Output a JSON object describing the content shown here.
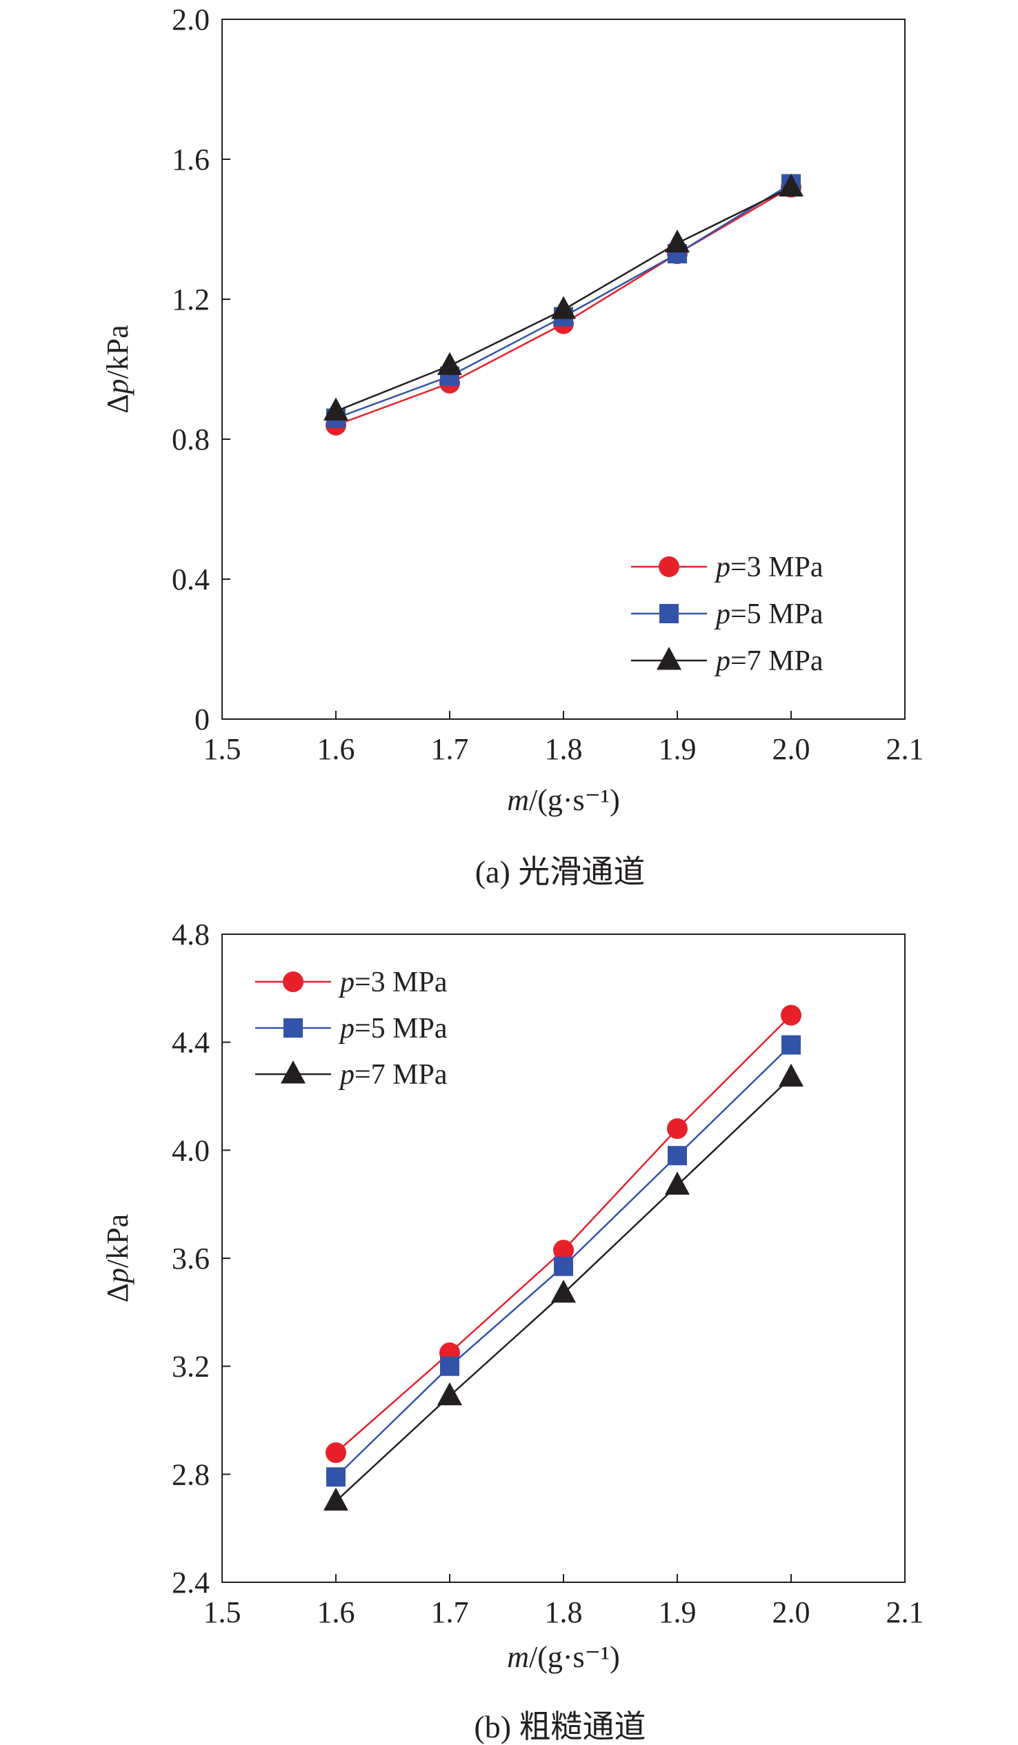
{
  "chart_data": [
    {
      "type": "line",
      "caption": "(a) 光滑通道",
      "xlabel": "m/(g·s⁻¹)",
      "ylabel": "Δp/kPa",
      "xlim": [
        1.5,
        2.1
      ],
      "ylim": [
        0,
        2.0
      ],
      "xticks": [
        "1.5",
        "1.6",
        "1.7",
        "1.8",
        "1.9",
        "2.0",
        "2.1"
      ],
      "yticks": [
        "0",
        "0.4",
        "0.8",
        "1.2",
        "1.6",
        "2.0"
      ],
      "legend_position": "bottom-right",
      "x": [
        1.6,
        1.7,
        1.8,
        1.9,
        2.0
      ],
      "series": [
        {
          "name": "p=3 MPa",
          "color": "#e8202a",
          "marker": "circle",
          "values": [
            0.84,
            0.96,
            1.13,
            1.33,
            1.52
          ]
        },
        {
          "name": "p=5 MPa",
          "color": "#3253a8",
          "marker": "square",
          "values": [
            0.86,
            0.98,
            1.15,
            1.33,
            1.53
          ]
        },
        {
          "name": "p=7 MPa",
          "color": "#231f20",
          "marker": "triangle",
          "values": [
            0.88,
            1.01,
            1.17,
            1.36,
            1.52
          ]
        }
      ]
    },
    {
      "type": "line",
      "caption": "(b) 粗糙通道",
      "xlabel": "m/(g·s⁻¹)",
      "ylabel": "Δp/kPa",
      "xlim": [
        1.5,
        2.1
      ],
      "ylim": [
        2.4,
        4.8
      ],
      "xticks": [
        "1.5",
        "1.6",
        "1.7",
        "1.8",
        "1.9",
        "2.0",
        "2.1"
      ],
      "yticks": [
        "2.4",
        "2.8",
        "3.2",
        "3.6",
        "4.0",
        "4.4",
        "4.8"
      ],
      "legend_position": "top-left",
      "x": [
        1.6,
        1.7,
        1.8,
        1.9,
        2.0
      ],
      "series": [
        {
          "name": "p=3 MPa",
          "color": "#e8202a",
          "marker": "circle",
          "values": [
            2.88,
            3.25,
            3.63,
            4.08,
            4.5
          ]
        },
        {
          "name": "p=5 MPa",
          "color": "#3253a8",
          "marker": "square",
          "values": [
            2.79,
            3.2,
            3.57,
            3.98,
            4.39
          ]
        },
        {
          "name": "p=7 MPa",
          "color": "#231f20",
          "marker": "triangle",
          "values": [
            2.7,
            3.09,
            3.47,
            3.87,
            4.27
          ]
        }
      ]
    }
  ]
}
